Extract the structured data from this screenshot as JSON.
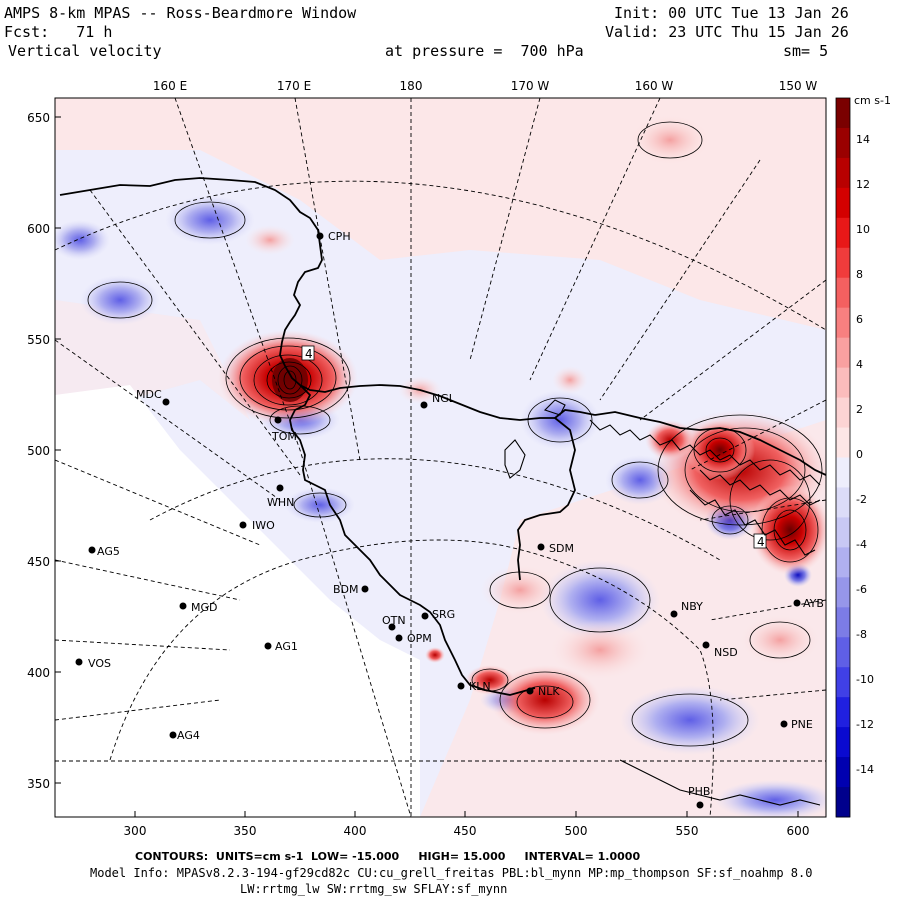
{
  "header": {
    "title": "AMPS 8-km MPAS -- Ross-Beardmore Window",
    "fcst_label": "Fcst:",
    "fcst_value": "71 h",
    "field": "Vertical velocity",
    "pressure_label": "at pressure =",
    "pressure_value": "700 hPa",
    "init": "Init: 00 UTC Tue 13 Jan 26",
    "valid": "Valid: 23 UTC Thu 15 Jan 26",
    "smooth": "sm= 5"
  },
  "top_longitudes": [
    "160 E",
    "170 E",
    "180",
    "170 W",
    "160 W",
    "150 W"
  ],
  "y_ticks": [
    "650",
    "600",
    "550",
    "500",
    "450",
    "400",
    "350"
  ],
  "x_ticks": [
    "300",
    "350",
    "400",
    "450",
    "500",
    "550",
    "600"
  ],
  "stations": [
    {
      "id": "CPH"
    },
    {
      "id": "MDC"
    },
    {
      "id": "NGL"
    },
    {
      "id": "TOM"
    },
    {
      "id": "WHN"
    },
    {
      "id": "IWO"
    },
    {
      "id": "AG5"
    },
    {
      "id": "SDM"
    },
    {
      "id": "BDM"
    },
    {
      "id": "MGD"
    },
    {
      "id": "OTN"
    },
    {
      "id": "SRG"
    },
    {
      "id": "OPM"
    },
    {
      "id": "AG1"
    },
    {
      "id": "VOS"
    },
    {
      "id": "KLN"
    },
    {
      "id": "NLK"
    },
    {
      "id": "NBY"
    },
    {
      "id": "NSD"
    },
    {
      "id": "AG4"
    },
    {
      "id": "PNE"
    },
    {
      "id": "PHB"
    },
    {
      "id": "AYB"
    }
  ],
  "colorbar": {
    "units": "cm s-1",
    "labels": [
      "14",
      "12",
      "10",
      "8",
      "6",
      "4",
      "2",
      "0",
      "-2",
      "-4",
      "-6",
      "-8",
      "-10",
      "-12",
      "-14"
    ],
    "colors": [
      "#7a0000",
      "#9a0000",
      "#b80000",
      "#d40000",
      "#e81818",
      "#f03c3c",
      "#f46060",
      "#f88080",
      "#f9a0a0",
      "#fbbcbc",
      "#fcd4d4",
      "#fde6e6",
      "#eeeefc",
      "#dcdcf8",
      "#c8c8f4",
      "#b0b0f0",
      "#9696ea",
      "#7c7ce6",
      "#5f5fe6",
      "#4040e6",
      "#2020e0",
      "#0a0ad0",
      "#0000b0",
      "#00008c"
    ]
  },
  "footer": {
    "contours_label": "CONTOURS:",
    "units": "UNITS=cm s-1",
    "low": "LOW= -15.000",
    "high": "HIGH= 15.000",
    "interval": "INTERVAL= 1.0000",
    "model_info": "Model Info: MPASv8.2.3-194-gf29cd82c CU:cu_grell_freitas PBL:bl_mynn MP:mp_thompson SF:sf_noahmp 8.0",
    "model_info2": "LW:rrtmg_lw SW:rrtmg_sw SFLAY:sf_mynn"
  }
}
